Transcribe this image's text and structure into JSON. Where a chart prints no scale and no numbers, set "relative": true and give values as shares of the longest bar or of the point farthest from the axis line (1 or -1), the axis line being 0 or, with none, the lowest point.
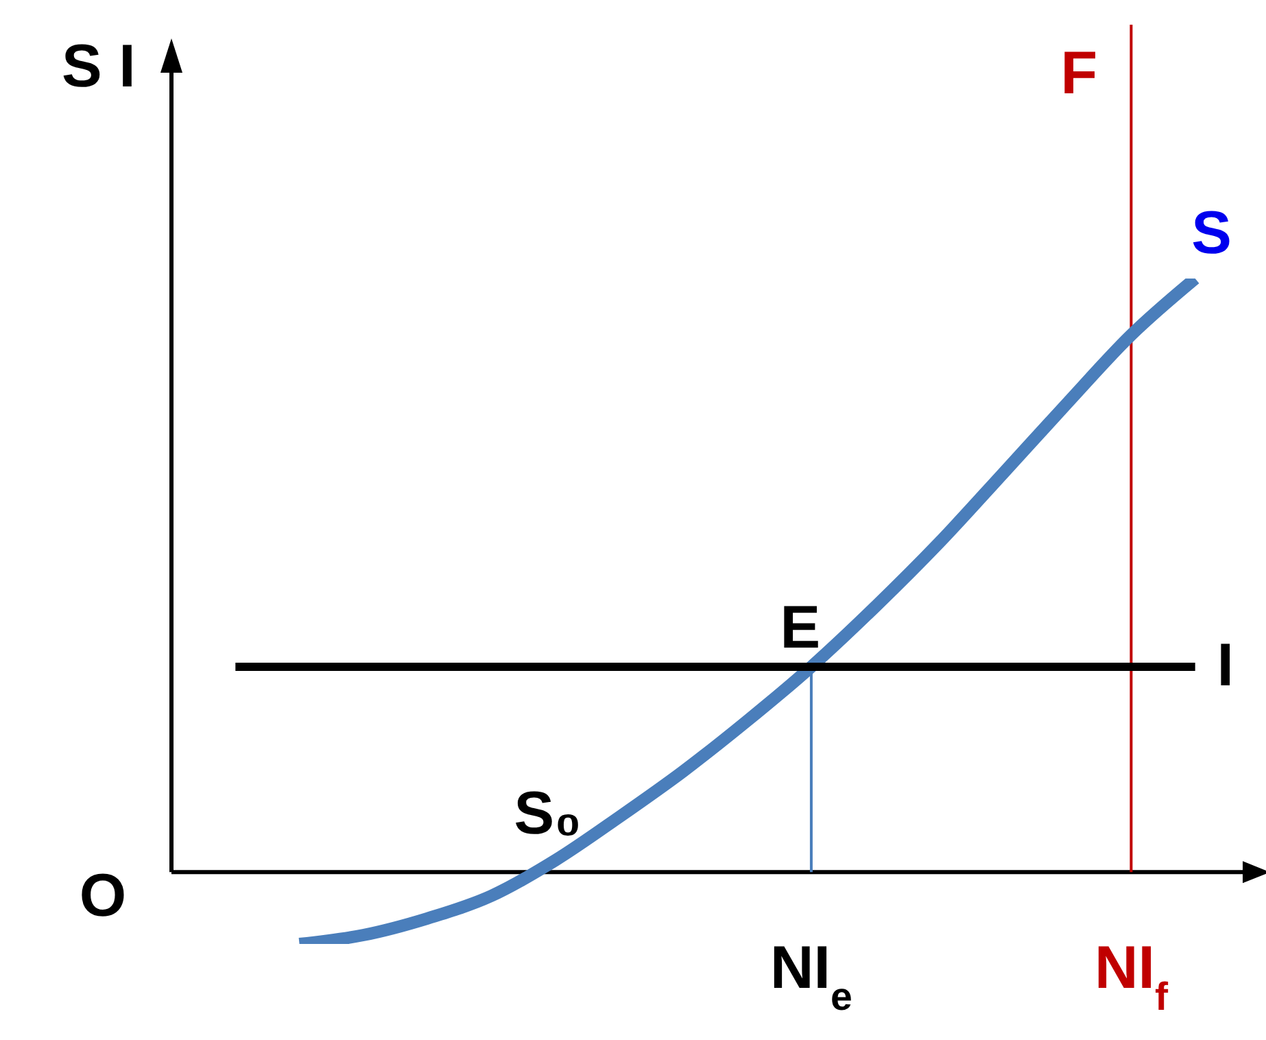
{
  "chart_data": {
    "type": "line",
    "relative": true,
    "ylabel": "S I",
    "categories": [
      null,
      null,
      null,
      null,
      null,
      null,
      null,
      null,
      null,
      null,
      "NI$_{e}$",
      null,
      null,
      null,
      null,
      "NI$_{f}$",
      null,
      null
    ],
    "series": [
      {
        "name": "S",
        "color": "#4a7ebb",
        "values": [
          null,
          null,
          -0.121,
          -0.106,
          -0.078,
          -0.04,
          0.02,
          0.093,
          0.17,
          0.255,
          0.346,
          0.447,
          0.555,
          0.672,
          0.79,
          0.905,
          1,
          null
        ]
      },
      {
        "name": "I",
        "color": "#000000",
        "values": [
          null,
          0.346,
          0.346,
          0.346,
          0.346,
          0.346,
          0.346,
          0.346,
          0.346,
          0.346,
          0.346,
          0.346,
          0.346,
          0.346,
          0.346,
          0.346,
          0.346,
          null
        ]
      }
    ],
    "ref_lines": [
      {
        "axis": "x",
        "value": "NI$_{e}$",
        "label": null,
        "color": "#4a7ebb"
      },
      {
        "axis": "x",
        "value": "NI$_{f}$",
        "label": "F",
        "color": "#c00000"
      }
    ],
    "annotations": [
      "O",
      {
        "text": "E",
        "x": "NI$_{e}$",
        "y": 0.346
      },
      "S₀"
    ],
    "legend": false,
    "marker": "none",
    "line_style": "solid"
  }
}
